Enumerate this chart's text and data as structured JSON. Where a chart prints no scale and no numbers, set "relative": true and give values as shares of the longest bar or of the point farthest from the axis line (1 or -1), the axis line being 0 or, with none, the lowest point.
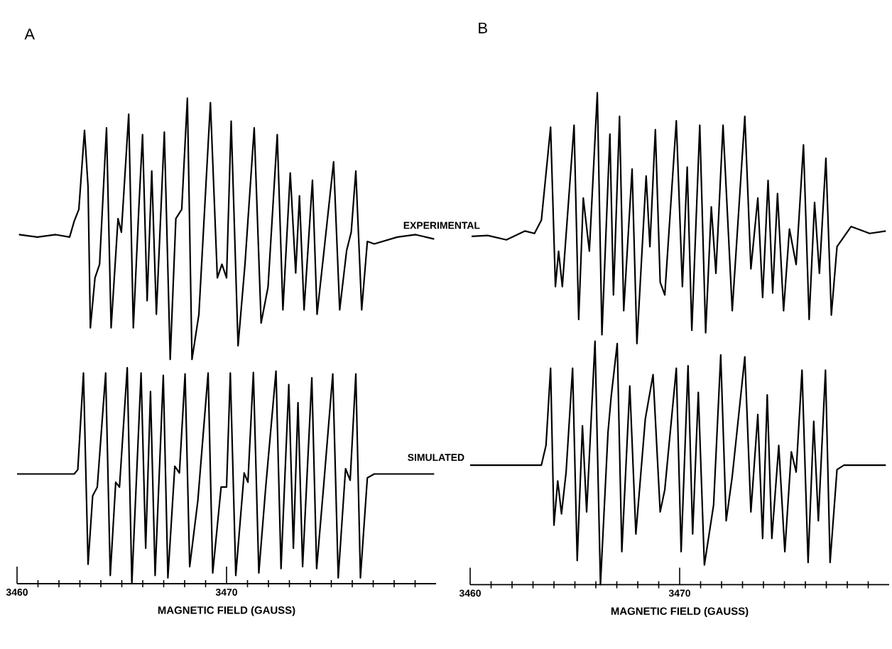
{
  "chart_data": [
    {
      "type": "line",
      "title": "A",
      "xlabel": "MAGNETIC FIELD (GAUSS)",
      "relative": true,
      "xlim": [
        3460,
        3480
      ],
      "xticks": [
        3460,
        {
          "value": 3461,
          "label": null
        },
        {
          "value": 3462,
          "label": null
        },
        {
          "value": 3463,
          "label": null
        },
        {
          "value": 3464,
          "label": null
        },
        {
          "value": 3465,
          "label": null
        },
        {
          "value": 3466,
          "label": null
        },
        {
          "value": 3467,
          "label": null
        },
        {
          "value": 3468,
          "label": null
        },
        {
          "value": 3469,
          "label": null
        },
        3470,
        {
          "value": 3471,
          "label": null
        },
        {
          "value": 3472,
          "label": null
        },
        {
          "value": 3473,
          "label": null
        },
        {
          "value": 3474,
          "label": null
        },
        {
          "value": 3475,
          "label": null
        },
        {
          "value": 3476,
          "label": null
        },
        {
          "value": 3477,
          "label": null
        },
        {
          "value": 3478,
          "label": null
        },
        {
          "value": 3479,
          "label": null
        }
      ],
      "series": [
        {
          "name": "EXPERIMENTAL",
          "color": "#000000",
          "x": [
            3460.09,
            3460.97,
            3461.85,
            3462.51,
            3462.73,
            3462.95,
            3463.22,
            3463.39,
            3463.5,
            3463.72,
            3463.94,
            3464.27,
            3464.49,
            3464.82,
            3464.98,
            3465.33,
            3465.55,
            3465.81,
            3465.99,
            3466.21,
            3466.43,
            3466.65,
            3467.03,
            3467.31,
            3467.58,
            3467.86,
            3468.13,
            3468.35,
            3468.68,
            3469.23,
            3469.56,
            3469.78,
            3470.0,
            3470.22,
            3470.55,
            3470.88,
            3471.32,
            3471.65,
            3471.98,
            3472.42,
            3472.69,
            3473.04,
            3473.3,
            3473.48,
            3473.7,
            3474.1,
            3474.32,
            3474.63,
            3475.11,
            3475.4,
            3475.73,
            3475.95,
            3476.17,
            3476.45,
            3476.72,
            3477.05,
            3478.15,
            3479.03,
            3479.91
          ],
          "values": [
            0.719,
            0.714,
            0.719,
            0.714,
            0.747,
            0.771,
            0.934,
            0.817,
            0.527,
            0.63,
            0.658,
            0.939,
            0.527,
            0.752,
            0.724,
            0.967,
            0.527,
            0.771,
            0.925,
            0.583,
            0.85,
            0.555,
            0.93,
            0.462,
            0.752,
            0.771,
            1.0,
            0.462,
            0.555,
            0.991,
            0.63,
            0.658,
            0.63,
            0.953,
            0.49,
            0.658,
            0.939,
            0.537,
            0.611,
            0.925,
            0.564,
            0.846,
            0.64,
            0.799,
            0.564,
            0.831,
            0.555,
            0.677,
            0.869,
            0.564,
            0.686,
            0.724,
            0.85,
            0.564,
            0.705,
            0.7,
            0.714,
            0.719,
            0.71
          ]
        },
        {
          "name": "SIMULATED",
          "color": "#000000",
          "x": [
            3460.0,
            3462.73,
            3462.9,
            3463.17,
            3463.39,
            3463.61,
            3463.83,
            3464.23,
            3464.45,
            3464.71,
            3464.89,
            3465.26,
            3465.48,
            3465.92,
            3466.14,
            3466.37,
            3466.59,
            3466.98,
            3467.2,
            3467.53,
            3467.75,
            3468.02,
            3468.24,
            3468.63,
            3469.12,
            3469.34,
            3469.74,
            3470.0,
            3470.18,
            3470.44,
            3470.84,
            3471.02,
            3471.28,
            3471.54,
            3471.87,
            3472.36,
            3472.6,
            3472.97,
            3473.19,
            3473.41,
            3473.63,
            3474.07,
            3474.3,
            3474.63,
            3475.07,
            3475.33,
            3475.68,
            3475.9,
            3476.17,
            3476.39,
            3476.72,
            3477.05,
            3479.91
          ],
          "values": [
            0.226,
            0.226,
            0.235,
            0.434,
            0.04,
            0.181,
            0.199,
            0.434,
            0.017,
            0.209,
            0.199,
            0.445,
            0.0,
            0.434,
            0.073,
            0.396,
            0.017,
            0.429,
            0.012,
            0.242,
            0.228,
            0.432,
            0.035,
            0.171,
            0.434,
            0.022,
            0.199,
            0.199,
            0.434,
            0.017,
            0.228,
            0.209,
            0.435,
            0.022,
            0.199,
            0.438,
            0.031,
            0.41,
            0.073,
            0.373,
            0.035,
            0.424,
            0.031,
            0.199,
            0.432,
            0.012,
            0.237,
            0.213,
            0.432,
            0.012,
            0.218,
            0.226,
            0.226
          ]
        }
      ]
    },
    {
      "type": "line",
      "title": "B",
      "xlabel": "MAGNETIC FIELD (GAUSS)",
      "relative": true,
      "xlim": [
        3460,
        3480
      ],
      "xticks": [
        3460,
        {
          "value": 3461,
          "label": null
        },
        {
          "value": 3462,
          "label": null
        },
        {
          "value": 3463,
          "label": null
        },
        {
          "value": 3464,
          "label": null
        },
        {
          "value": 3465,
          "label": null
        },
        {
          "value": 3466,
          "label": null
        },
        {
          "value": 3467,
          "label": null
        },
        {
          "value": 3468,
          "label": null
        },
        {
          "value": 3469,
          "label": null
        },
        3470,
        {
          "value": 3471,
          "label": null
        },
        {
          "value": 3472,
          "label": null
        },
        {
          "value": 3473,
          "label": null
        },
        {
          "value": 3474,
          "label": null
        },
        {
          "value": 3475,
          "label": null
        },
        {
          "value": 3476,
          "label": null
        },
        {
          "value": 3477,
          "label": null
        },
        {
          "value": 3478,
          "label": null
        },
        {
          "value": 3479,
          "label": null
        }
      ],
      "series": [
        {
          "color": "#000000",
          "x": [
            3460.07,
            3460.84,
            3461.73,
            3462.62,
            3463.07,
            3463.4,
            3463.84,
            3464.07,
            3464.22,
            3464.4,
            3464.96,
            3465.18,
            3465.4,
            3465.69,
            3466.07,
            3466.29,
            3466.67,
            3466.84,
            3467.13,
            3467.33,
            3467.73,
            3467.96,
            3468.4,
            3468.58,
            3468.84,
            3469.07,
            3469.29,
            3469.84,
            3470.13,
            3470.36,
            3470.58,
            3470.96,
            3471.24,
            3471.51,
            3471.73,
            3472.07,
            3472.51,
            3473.11,
            3473.4,
            3473.73,
            3473.96,
            3474.22,
            3474.44,
            3474.67,
            3474.96,
            3475.24,
            3475.56,
            3475.91,
            3476.18,
            3476.44,
            3476.67,
            3476.98,
            3477.24,
            3477.51,
            3478.18,
            3479.07,
            3479.84
          ],
          "values": [
            0.708,
            0.71,
            0.701,
            0.719,
            0.714,
            0.741,
            0.93,
            0.606,
            0.678,
            0.606,
            0.934,
            0.539,
            0.786,
            0.678,
            1.0,
            0.508,
            0.916,
            0.589,
            0.952,
            0.557,
            0.845,
            0.49,
            0.831,
            0.687,
            0.925,
            0.615,
            0.589,
            0.943,
            0.606,
            0.849,
            0.517,
            0.934,
            0.512,
            0.768,
            0.633,
            0.934,
            0.557,
            0.952,
            0.642,
            0.786,
            0.584,
            0.822,
            0.593,
            0.795,
            0.557,
            0.723,
            0.651,
            0.894,
            0.539,
            0.777,
            0.633,
            0.867,
            0.548,
            0.687,
            0.728,
            0.714,
            0.719
          ]
        },
        {
          "color": "#000000",
          "x": [
            3460.0,
            3463.4,
            3463.62,
            3463.84,
            3464.0,
            3464.18,
            3464.36,
            3464.58,
            3464.89,
            3465.11,
            3465.36,
            3465.56,
            3465.96,
            3466.22,
            3466.58,
            3466.73,
            3467.02,
            3467.24,
            3467.62,
            3467.91,
            3468.36,
            3468.73,
            3469.07,
            3469.29,
            3469.84,
            3470.07,
            3470.4,
            3470.62,
            3470.89,
            3471.18,
            3471.62,
            3471.96,
            3472.22,
            3472.51,
            3473.11,
            3473.4,
            3473.73,
            3473.96,
            3474.18,
            3474.4,
            3474.73,
            3475.02,
            3475.33,
            3475.56,
            3475.84,
            3476.13,
            3476.4,
            3476.62,
            3476.96,
            3477.18,
            3477.51,
            3477.84,
            3479.84
          ],
          "values": [
            0.243,
            0.243,
            0.283,
            0.44,
            0.121,
            0.211,
            0.144,
            0.229,
            0.44,
            0.049,
            0.323,
            0.148,
            0.495,
            0.0,
            0.31,
            0.382,
            0.49,
            0.067,
            0.404,
            0.103,
            0.337,
            0.427,
            0.148,
            0.193,
            0.44,
            0.067,
            0.445,
            0.103,
            0.391,
            0.04,
            0.162,
            0.467,
            0.13,
            0.22,
            0.463,
            0.148,
            0.346,
            0.094,
            0.386,
            0.094,
            0.283,
            0.067,
            0.27,
            0.229,
            0.436,
            0.045,
            0.332,
            0.13,
            0.436,
            0.045,
            0.234,
            0.243,
            0.243
          ]
        }
      ]
    }
  ]
}
